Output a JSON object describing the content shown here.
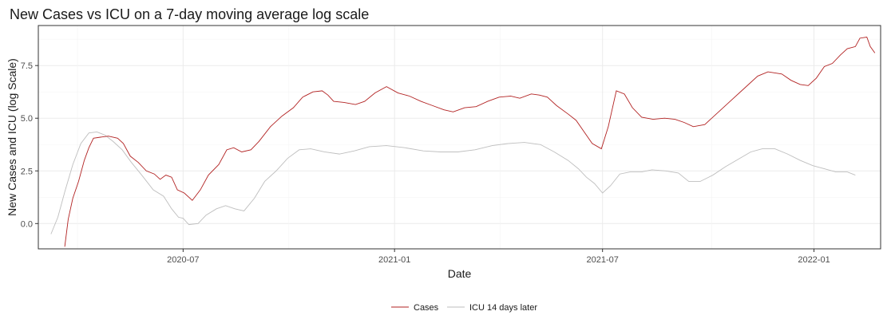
{
  "chart_data": {
    "type": "line",
    "title": "New Cases vs ICU on a 7-day moving average log scale",
    "xlabel": "Date",
    "ylabel": "New Cases and ICU (log Scale)",
    "x_ticks": [
      "2020-07",
      "2021-01",
      "2021-07",
      "2022-01"
    ],
    "y_ticks": [
      "0.0",
      "2.5",
      "5.0",
      "7.5"
    ],
    "xlim": [
      "2020-02-26",
      "2022-02-28"
    ],
    "ylim": [
      -1.2,
      9.4
    ],
    "grid": true,
    "legend_position": "bottom",
    "series": [
      {
        "name": "Cases",
        "color": "#b22222",
        "points": [
          [
            "2020-03-20",
            -1.1
          ],
          [
            "2020-03-23",
            0.2
          ],
          [
            "2020-03-27",
            1.2
          ],
          [
            "2020-04-01",
            2.0
          ],
          [
            "2020-04-06",
            3.0
          ],
          [
            "2020-04-10",
            3.6
          ],
          [
            "2020-04-14",
            4.05
          ],
          [
            "2020-04-20",
            4.1
          ],
          [
            "2020-04-27",
            4.15
          ],
          [
            "2020-05-05",
            4.05
          ],
          [
            "2020-05-10",
            3.8
          ],
          [
            "2020-05-16",
            3.2
          ],
          [
            "2020-05-23",
            2.9
          ],
          [
            "2020-05-30",
            2.5
          ],
          [
            "2020-06-06",
            2.35
          ],
          [
            "2020-06-11",
            2.1
          ],
          [
            "2020-06-16",
            2.3
          ],
          [
            "2020-06-21",
            2.2
          ],
          [
            "2020-06-26",
            1.6
          ],
          [
            "2020-07-02",
            1.45
          ],
          [
            "2020-07-09",
            1.1
          ],
          [
            "2020-07-16",
            1.6
          ],
          [
            "2020-07-23",
            2.3
          ],
          [
            "2020-08-01",
            2.8
          ],
          [
            "2020-08-08",
            3.5
          ],
          [
            "2020-08-14",
            3.6
          ],
          [
            "2020-08-21",
            3.4
          ],
          [
            "2020-08-29",
            3.5
          ],
          [
            "2020-09-05",
            3.9
          ],
          [
            "2020-09-15",
            4.6
          ],
          [
            "2020-09-25",
            5.1
          ],
          [
            "2020-10-05",
            5.5
          ],
          [
            "2020-10-13",
            6.0
          ],
          [
            "2020-10-22",
            6.25
          ],
          [
            "2020-10-30",
            6.3
          ],
          [
            "2020-11-04",
            6.1
          ],
          [
            "2020-11-09",
            5.8
          ],
          [
            "2020-11-18",
            5.75
          ],
          [
            "2020-11-28",
            5.65
          ],
          [
            "2020-12-06",
            5.8
          ],
          [
            "2020-12-15",
            6.2
          ],
          [
            "2020-12-25",
            6.5
          ],
          [
            "2021-01-04",
            6.2
          ],
          [
            "2021-01-14",
            6.05
          ],
          [
            "2021-01-24",
            5.8
          ],
          [
            "2021-02-03",
            5.6
          ],
          [
            "2021-02-13",
            5.4
          ],
          [
            "2021-02-21",
            5.3
          ],
          [
            "2021-03-03",
            5.5
          ],
          [
            "2021-03-13",
            5.55
          ],
          [
            "2021-03-23",
            5.8
          ],
          [
            "2021-04-02",
            6.0
          ],
          [
            "2021-04-12",
            6.05
          ],
          [
            "2021-04-20",
            5.95
          ],
          [
            "2021-04-30",
            6.15
          ],
          [
            "2021-05-07",
            6.1
          ],
          [
            "2021-05-14",
            6.0
          ],
          [
            "2021-05-22",
            5.6
          ],
          [
            "2021-06-01",
            5.2
          ],
          [
            "2021-06-08",
            4.9
          ],
          [
            "2021-06-15",
            4.35
          ],
          [
            "2021-06-22",
            3.8
          ],
          [
            "2021-06-30",
            3.55
          ],
          [
            "2021-07-06",
            4.6
          ],
          [
            "2021-07-13",
            6.3
          ],
          [
            "2021-07-20",
            6.15
          ],
          [
            "2021-07-27",
            5.5
          ],
          [
            "2021-08-04",
            5.05
          ],
          [
            "2021-08-14",
            4.95
          ],
          [
            "2021-08-24",
            5.0
          ],
          [
            "2021-09-02",
            4.95
          ],
          [
            "2021-09-10",
            4.8
          ],
          [
            "2021-09-18",
            4.6
          ],
          [
            "2021-09-28",
            4.7
          ],
          [
            "2021-10-08",
            5.2
          ],
          [
            "2021-10-20",
            5.8
          ],
          [
            "2021-11-01",
            6.4
          ],
          [
            "2021-11-13",
            7.0
          ],
          [
            "2021-11-22",
            7.2
          ],
          [
            "2021-12-04",
            7.1
          ],
          [
            "2021-12-12",
            6.8
          ],
          [
            "2021-12-20",
            6.6
          ],
          [
            "2021-12-27",
            6.55
          ],
          [
            "2022-01-03",
            6.9
          ],
          [
            "2022-01-10",
            7.45
          ],
          [
            "2022-01-17",
            7.6
          ],
          [
            "2022-01-24",
            8.0
          ],
          [
            "2022-01-30",
            8.3
          ],
          [
            "2022-02-06",
            8.4
          ],
          [
            "2022-02-10",
            8.8
          ],
          [
            "2022-02-16",
            8.85
          ],
          [
            "2022-02-19",
            8.4
          ],
          [
            "2022-02-23",
            8.1
          ]
        ]
      },
      {
        "name": "ICU 14 days later",
        "color": "#bebebe",
        "points": [
          [
            "2020-03-08",
            -0.5
          ],
          [
            "2020-03-14",
            0.3
          ],
          [
            "2020-03-20",
            1.5
          ],
          [
            "2020-03-27",
            2.8
          ],
          [
            "2020-04-03",
            3.8
          ],
          [
            "2020-04-10",
            4.3
          ],
          [
            "2020-04-17",
            4.35
          ],
          [
            "2020-04-24",
            4.2
          ],
          [
            "2020-05-01",
            3.9
          ],
          [
            "2020-05-09",
            3.5
          ],
          [
            "2020-05-17",
            2.9
          ],
          [
            "2020-05-26",
            2.3
          ],
          [
            "2020-06-05",
            1.6
          ],
          [
            "2020-06-14",
            1.3
          ],
          [
            "2020-06-21",
            0.7
          ],
          [
            "2020-06-27",
            0.3
          ],
          [
            "2020-07-01",
            0.25
          ],
          [
            "2020-07-06",
            -0.05
          ],
          [
            "2020-07-14",
            0.0
          ],
          [
            "2020-07-21",
            0.4
          ],
          [
            "2020-07-30",
            0.7
          ],
          [
            "2020-08-07",
            0.85
          ],
          [
            "2020-08-15",
            0.7
          ],
          [
            "2020-08-23",
            0.6
          ],
          [
            "2020-09-01",
            1.2
          ],
          [
            "2020-09-10",
            2.0
          ],
          [
            "2020-09-20",
            2.5
          ],
          [
            "2020-09-30",
            3.1
          ],
          [
            "2020-10-10",
            3.5
          ],
          [
            "2020-10-20",
            3.55
          ],
          [
            "2020-11-01",
            3.4
          ],
          [
            "2020-11-14",
            3.3
          ],
          [
            "2020-11-27",
            3.45
          ],
          [
            "2020-12-10",
            3.65
          ],
          [
            "2020-12-25",
            3.7
          ],
          [
            "2021-01-10",
            3.6
          ],
          [
            "2021-01-26",
            3.45
          ],
          [
            "2021-02-10",
            3.4
          ],
          [
            "2021-02-25",
            3.4
          ],
          [
            "2021-03-12",
            3.5
          ],
          [
            "2021-03-27",
            3.7
          ],
          [
            "2021-04-10",
            3.8
          ],
          [
            "2021-04-24",
            3.85
          ],
          [
            "2021-05-08",
            3.75
          ],
          [
            "2021-05-20",
            3.4
          ],
          [
            "2021-06-01",
            3.0
          ],
          [
            "2021-06-10",
            2.6
          ],
          [
            "2021-06-17",
            2.2
          ],
          [
            "2021-06-24",
            1.9
          ],
          [
            "2021-07-01",
            1.45
          ],
          [
            "2021-07-08",
            1.8
          ],
          [
            "2021-07-16",
            2.35
          ],
          [
            "2021-07-25",
            2.45
          ],
          [
            "2021-08-04",
            2.45
          ],
          [
            "2021-08-13",
            2.55
          ],
          [
            "2021-08-25",
            2.5
          ],
          [
            "2021-09-05",
            2.4
          ],
          [
            "2021-09-14",
            2.0
          ],
          [
            "2021-09-24",
            2.0
          ],
          [
            "2021-10-05",
            2.3
          ],
          [
            "2021-10-16",
            2.7
          ],
          [
            "2021-10-27",
            3.05
          ],
          [
            "2021-11-07",
            3.4
          ],
          [
            "2021-11-17",
            3.55
          ],
          [
            "2021-11-28",
            3.55
          ],
          [
            "2021-12-09",
            3.3
          ],
          [
            "2021-12-20",
            3.0
          ],
          [
            "2021-12-31",
            2.75
          ],
          [
            "2022-01-10",
            2.6
          ],
          [
            "2022-01-20",
            2.45
          ],
          [
            "2022-01-30",
            2.45
          ],
          [
            "2022-02-06",
            2.3
          ]
        ]
      }
    ]
  }
}
